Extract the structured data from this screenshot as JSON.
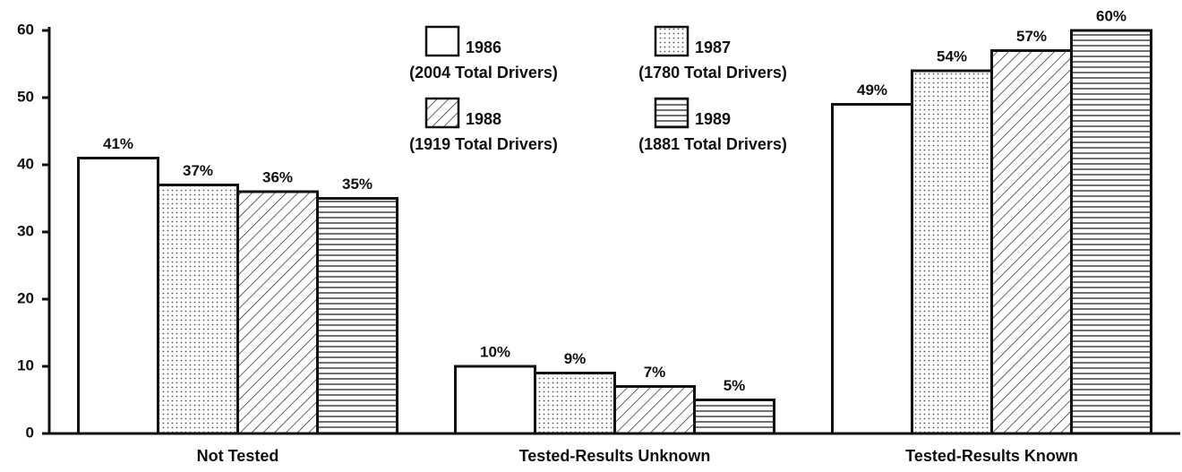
{
  "chart_data": {
    "type": "bar",
    "categories": [
      "Not Tested",
      "Tested-Results Unknown",
      "Tested-Results Known"
    ],
    "series": [
      {
        "name": "1986",
        "detail": "(2004 Total Drivers)",
        "color": "#ffffff",
        "pattern": "none",
        "values": [
          41,
          10,
          49
        ],
        "value_labels": [
          "41%",
          "10%",
          "49%"
        ]
      },
      {
        "name": "1987",
        "detail": "(1780 Total Drivers)",
        "color": "#ffffff",
        "pattern": "dots",
        "values": [
          37,
          9,
          54
        ],
        "value_labels": [
          "37%",
          "9%",
          "54%"
        ]
      },
      {
        "name": "1988",
        "detail": "(1919 Total Drivers)",
        "color": "#ffffff",
        "pattern": "diagonal",
        "values": [
          36,
          7,
          57
        ],
        "value_labels": [
          "36%",
          "7%",
          "57%"
        ]
      },
      {
        "name": "1989",
        "detail": "(1881 Total Drivers)",
        "color": "#ffffff",
        "pattern": "horizontal",
        "values": [
          35,
          5,
          60
        ],
        "value_labels": [
          "35%",
          "5%",
          "60%"
        ]
      }
    ],
    "ylim": [
      0,
      60
    ],
    "yticks": [
      0,
      10,
      20,
      30,
      40,
      50,
      60
    ],
    "grid": false
  }
}
